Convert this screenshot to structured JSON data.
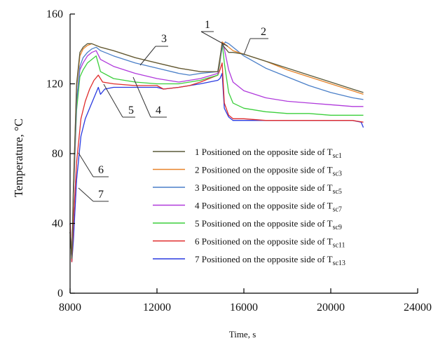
{
  "chart_data": {
    "type": "line",
    "title": "",
    "xlabel": "Time, s",
    "ylabel": "Temperature, °C",
    "xlim": [
      8000,
      24000
    ],
    "ylim": [
      0,
      160
    ],
    "xticks": [
      8000,
      12000,
      16000,
      20000,
      24000
    ],
    "yticks": [
      0,
      40,
      80,
      120,
      160
    ],
    "grid": false,
    "legend_position": "center-right",
    "series": [
      {
        "name": "1 Positioned on the opposite side of T",
        "subscript": "sc1",
        "color": "#5a5a3a",
        "callout": "1",
        "points": [
          [
            8000,
            35
          ],
          [
            8080,
            20
          ],
          [
            8150,
            60
          ],
          [
            8300,
            120
          ],
          [
            8450,
            138
          ],
          [
            8600,
            141
          ],
          [
            8800,
            143
          ],
          [
            9000,
            143
          ],
          [
            9200,
            142
          ],
          [
            9400,
            141
          ],
          [
            10000,
            139
          ],
          [
            11000,
            135
          ],
          [
            12000,
            132
          ],
          [
            13000,
            129
          ],
          [
            14000,
            127
          ],
          [
            14800,
            127
          ],
          [
            14900,
            135
          ],
          [
            15000,
            143
          ],
          [
            15100,
            141
          ],
          [
            15300,
            138
          ],
          [
            15500,
            138
          ],
          [
            16000,
            137
          ],
          [
            17000,
            133
          ],
          [
            18000,
            129
          ],
          [
            19000,
            125
          ],
          [
            20000,
            121
          ],
          [
            21000,
            117
          ],
          [
            21500,
            115
          ]
        ]
      },
      {
        "name": "2 Positioned on the opposite side of T",
        "subscript": "sc3",
        "color": "#e8842a",
        "callout": "2",
        "points": [
          [
            8000,
            35
          ],
          [
            8080,
            20
          ],
          [
            8150,
            60
          ],
          [
            8300,
            118
          ],
          [
            8450,
            136
          ],
          [
            8600,
            140
          ],
          [
            8800,
            142
          ],
          [
            9000,
            143
          ],
          [
            9200,
            142
          ],
          [
            9400,
            141
          ],
          [
            10000,
            139
          ],
          [
            11000,
            135
          ],
          [
            12000,
            132
          ],
          [
            13000,
            129
          ],
          [
            14000,
            127
          ],
          [
            14800,
            127
          ],
          [
            14900,
            134
          ],
          [
            15000,
            144
          ],
          [
            15100,
            143
          ],
          [
            15300,
            141
          ],
          [
            15500,
            139
          ],
          [
            16000,
            137
          ],
          [
            17000,
            133
          ],
          [
            18000,
            128
          ],
          [
            19000,
            124
          ],
          [
            20000,
            120
          ],
          [
            21000,
            116
          ],
          [
            21500,
            114
          ]
        ]
      },
      {
        "name": "3 Positioned on the opposite side of T",
        "subscript": "sc5",
        "color": "#4a7fc8",
        "callout": "3",
        "points": [
          [
            8000,
            35
          ],
          [
            8080,
            20
          ],
          [
            8150,
            55
          ],
          [
            8300,
            110
          ],
          [
            8450,
            130
          ],
          [
            8600,
            135
          ],
          [
            8800,
            138
          ],
          [
            9000,
            140
          ],
          [
            9200,
            141
          ],
          [
            9400,
            139
          ],
          [
            10000,
            136
          ],
          [
            11000,
            132
          ],
          [
            12000,
            129
          ],
          [
            13000,
            126
          ],
          [
            13500,
            125
          ],
          [
            14000,
            126
          ],
          [
            14800,
            127
          ],
          [
            14900,
            133
          ],
          [
            15000,
            141
          ],
          [
            15150,
            144
          ],
          [
            15300,
            143
          ],
          [
            15500,
            141
          ],
          [
            16000,
            136
          ],
          [
            17000,
            129
          ],
          [
            18000,
            124
          ],
          [
            19000,
            119
          ],
          [
            20000,
            115
          ],
          [
            21000,
            112
          ],
          [
            21500,
            111
          ]
        ]
      },
      {
        "name": "4 Positioned on the opposite side of T",
        "subscript": "sc7",
        "color": "#b03adc",
        "callout": "4",
        "points": [
          [
            8000,
            35
          ],
          [
            8080,
            20
          ],
          [
            8150,
            55
          ],
          [
            8300,
            110
          ],
          [
            8450,
            128
          ],
          [
            8600,
            132
          ],
          [
            8800,
            136
          ],
          [
            9000,
            138
          ],
          [
            9200,
            139
          ],
          [
            9400,
            134
          ],
          [
            10000,
            130
          ],
          [
            11000,
            126
          ],
          [
            12000,
            123
          ],
          [
            13000,
            121
          ],
          [
            13500,
            122
          ],
          [
            14000,
            123
          ],
          [
            14800,
            126
          ],
          [
            14900,
            133
          ],
          [
            15000,
            144
          ],
          [
            15100,
            140
          ],
          [
            15300,
            128
          ],
          [
            15500,
            121
          ],
          [
            16000,
            116
          ],
          [
            17000,
            112
          ],
          [
            18000,
            110
          ],
          [
            19000,
            109
          ],
          [
            20000,
            108
          ],
          [
            21000,
            107
          ],
          [
            21500,
            107
          ]
        ]
      },
      {
        "name": "5 Positioned on the opposite side of T",
        "subscript": "sc9",
        "color": "#3ccf3c",
        "callout": "5",
        "points": [
          [
            8000,
            35
          ],
          [
            8080,
            20
          ],
          [
            8150,
            55
          ],
          [
            8300,
            105
          ],
          [
            8450,
            124
          ],
          [
            8600,
            128
          ],
          [
            8800,
            132
          ],
          [
            9000,
            134
          ],
          [
            9200,
            136
          ],
          [
            9400,
            127
          ],
          [
            10000,
            123
          ],
          [
            11000,
            121
          ],
          [
            12000,
            120
          ],
          [
            12300,
            120
          ],
          [
            13000,
            120
          ],
          [
            13500,
            121
          ],
          [
            14000,
            122
          ],
          [
            14800,
            125
          ],
          [
            14900,
            132
          ],
          [
            15000,
            144
          ],
          [
            15100,
            132
          ],
          [
            15300,
            115
          ],
          [
            15500,
            109
          ],
          [
            16000,
            106
          ],
          [
            17000,
            104
          ],
          [
            18000,
            103
          ],
          [
            19000,
            103
          ],
          [
            20000,
            102
          ],
          [
            21000,
            102
          ],
          [
            21500,
            102
          ]
        ]
      },
      {
        "name": "6 Positioned on the opposite side of T",
        "subscript": "sc11",
        "color": "#e02b2b",
        "callout": "6",
        "points": [
          [
            8000,
            40
          ],
          [
            8080,
            18
          ],
          [
            8150,
            40
          ],
          [
            8300,
            75
          ],
          [
            8500,
            100
          ],
          [
            8700,
            110
          ],
          [
            8900,
            117
          ],
          [
            9100,
            122
          ],
          [
            9300,
            125
          ],
          [
            9500,
            121
          ],
          [
            10000,
            120
          ],
          [
            11000,
            119
          ],
          [
            12000,
            119
          ],
          [
            12300,
            117
          ],
          [
            13000,
            118
          ],
          [
            13500,
            119
          ],
          [
            14000,
            121
          ],
          [
            14800,
            125
          ],
          [
            14900,
            128
          ],
          [
            15000,
            132
          ],
          [
            15100,
            109
          ],
          [
            15300,
            102
          ],
          [
            15500,
            100
          ],
          [
            16000,
            100
          ],
          [
            17000,
            99
          ],
          [
            18000,
            99
          ],
          [
            19000,
            99
          ],
          [
            20000,
            99
          ],
          [
            21000,
            99
          ],
          [
            21500,
            98
          ]
        ]
      },
      {
        "name": "7 Positioned on the opposite side of T",
        "subscript": "sc13",
        "color": "#2a3ae0",
        "callout": "7",
        "points": [
          [
            8000,
            40
          ],
          [
            8080,
            18
          ],
          [
            8150,
            30
          ],
          [
            8300,
            65
          ],
          [
            8500,
            90
          ],
          [
            8700,
            100
          ],
          [
            8900,
            106
          ],
          [
            9100,
            112
          ],
          [
            9300,
            118
          ],
          [
            9400,
            114
          ],
          [
            9600,
            117
          ],
          [
            10000,
            118
          ],
          [
            11000,
            118
          ],
          [
            12000,
            118
          ],
          [
            12300,
            117
          ],
          [
            13000,
            118
          ],
          [
            13500,
            119
          ],
          [
            14000,
            120
          ],
          [
            14800,
            122
          ],
          [
            14900,
            123
          ],
          [
            15000,
            126
          ],
          [
            15100,
            106
          ],
          [
            15300,
            101
          ],
          [
            15500,
            99
          ],
          [
            16000,
            99
          ],
          [
            17000,
            99
          ],
          [
            18000,
            99
          ],
          [
            19000,
            99
          ],
          [
            20000,
            99
          ],
          [
            21000,
            99
          ],
          [
            21400,
            98
          ],
          [
            21500,
            95
          ]
        ]
      }
    ]
  }
}
